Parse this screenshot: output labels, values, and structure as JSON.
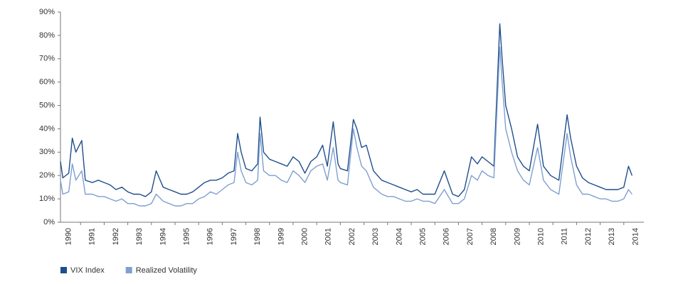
{
  "chart_data": {
    "type": "line",
    "x": [
      1990.15,
      1990.25,
      1990.5,
      1990.65,
      1990.8,
      1991.05,
      1991.2,
      1991.5,
      1991.75,
      1992.0,
      1992.25,
      1992.5,
      1992.75,
      1993.0,
      1993.25,
      1993.5,
      1993.75,
      1994.0,
      1994.2,
      1994.5,
      1994.75,
      1995.0,
      1995.25,
      1995.5,
      1995.75,
      1996.0,
      1996.25,
      1996.5,
      1996.75,
      1997.0,
      1997.25,
      1997.5,
      1997.65,
      1997.8,
      1998.0,
      1998.25,
      1998.5,
      1998.6,
      1998.75,
      1999.0,
      1999.25,
      1999.5,
      1999.75,
      2000.0,
      2000.25,
      2000.5,
      2000.75,
      2001.0,
      2001.25,
      2001.45,
      2001.7,
      2001.9,
      2002.0,
      2002.3,
      2002.55,
      2002.7,
      2002.9,
      2003.1,
      2003.4,
      2003.75,
      2004.0,
      2004.25,
      2004.5,
      2004.75,
      2005.0,
      2005.25,
      2005.5,
      2005.75,
      2006.0,
      2006.4,
      2006.75,
      2007.0,
      2007.25,
      2007.55,
      2007.8,
      2008.0,
      2008.25,
      2008.5,
      2008.75,
      2008.85,
      2009.0,
      2009.25,
      2009.5,
      2009.75,
      2010.0,
      2010.35,
      2010.6,
      2010.9,
      2011.25,
      2011.6,
      2011.75,
      2012.0,
      2012.25,
      2012.5,
      2012.75,
      2013.0,
      2013.25,
      2013.5,
      2013.75,
      2014.0,
      2014.2,
      2014.35
    ],
    "series": [
      {
        "name": "VIX Index",
        "color": "#1f4e8c",
        "values": [
          26,
          19,
          21,
          36,
          30,
          35,
          18,
          17,
          18,
          17,
          16,
          14,
          15,
          13,
          12,
          12,
          11,
          13,
          22,
          15,
          14,
          13,
          12,
          12,
          13,
          15,
          17,
          18,
          18,
          19,
          21,
          22,
          38,
          30,
          23,
          22,
          25,
          45,
          30,
          27,
          26,
          25,
          24,
          28,
          26,
          21,
          26,
          28,
          33,
          24,
          43,
          25,
          23,
          22,
          44,
          40,
          32,
          33,
          22,
          18,
          17,
          16,
          15,
          14,
          13,
          14,
          12,
          12,
          12,
          22,
          12,
          11,
          14,
          28,
          25,
          28,
          26,
          24,
          85,
          70,
          50,
          40,
          28,
          24,
          22,
          42,
          24,
          20,
          18,
          46,
          36,
          24,
          19,
          17,
          16,
          15,
          14,
          14,
          14,
          15,
          24,
          20
        ]
      },
      {
        "name": "Realized Volatility",
        "color": "#7f9fd0",
        "values": [
          18,
          12,
          13,
          25,
          18,
          22,
          12,
          12,
          11,
          11,
          10,
          9,
          10,
          8,
          8,
          7,
          7,
          8,
          12,
          9,
          8,
          7,
          7,
          8,
          8,
          10,
          11,
          13,
          12,
          14,
          16,
          17,
          30,
          22,
          17,
          16,
          18,
          38,
          22,
          20,
          20,
          18,
          17,
          22,
          20,
          17,
          22,
          24,
          25,
          18,
          32,
          18,
          17,
          16,
          40,
          32,
          24,
          22,
          15,
          12,
          11,
          11,
          10,
          9,
          9,
          10,
          9,
          9,
          8,
          14,
          8,
          8,
          10,
          20,
          18,
          22,
          20,
          19,
          75,
          60,
          40,
          30,
          22,
          18,
          16,
          32,
          18,
          14,
          12,
          38,
          28,
          16,
          12,
          12,
          11,
          10,
          10,
          9,
          9,
          10,
          14,
          12
        ]
      }
    ],
    "xlim": [
      1990.15,
      2014.85
    ],
    "xticks": [
      1990,
      1991,
      1992,
      1993,
      1994,
      1995,
      1996,
      1997,
      1998,
      1999,
      2000,
      2001,
      2002,
      2003,
      2004,
      2005,
      2006,
      2007,
      2008,
      2009,
      2010,
      2011,
      2012,
      2013,
      2014
    ],
    "ylim": [
      0,
      90
    ],
    "yticks": [
      {
        "value": 0,
        "label": "0%"
      },
      {
        "value": 10,
        "label": "10%"
      },
      {
        "value": 20,
        "label": "20%"
      },
      {
        "value": 30,
        "label": "30%"
      },
      {
        "value": 40,
        "label": "40%"
      },
      {
        "value": 50,
        "label": "50%"
      },
      {
        "value": 60,
        "label": "60%"
      },
      {
        "value": 70,
        "label": "70%"
      },
      {
        "value": 80,
        "label": "80%"
      },
      {
        "value": 90,
        "label": "90%"
      }
    ],
    "grid": false,
    "legend": "bottom-left"
  }
}
